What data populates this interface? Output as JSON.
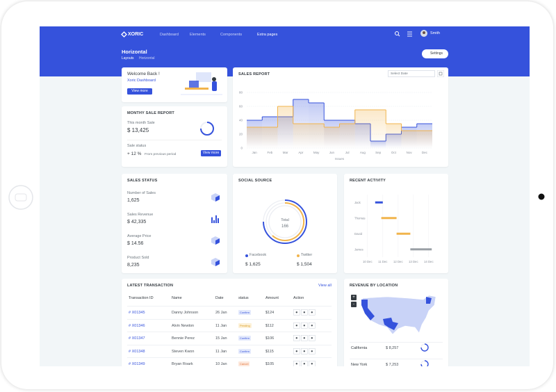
{
  "nav": {
    "brand": "XORIC",
    "links": [
      "Dashboard",
      "Elements",
      "Components",
      "Extra pages"
    ],
    "user": "Smith"
  },
  "page_title": {
    "title": "Horizontal",
    "breadcrumb": [
      "Layouts",
      "Horizontal"
    ],
    "settings": "Settings"
  },
  "welcome": {
    "title": "Welcome Back !",
    "subtitle": "Xoric Dashboard",
    "button": "View more"
  },
  "monthly": {
    "title": "MONTHY SALE REPORT",
    "label": "This month Sale",
    "amount": "$ 13,425",
    "status_label": "Sale status",
    "change": "+ 12 %",
    "change_note": "From previous period",
    "button": "View more"
  },
  "sales_report": {
    "date_picker": "Select Date"
  },
  "chart_data": [
    {
      "type": "step",
      "title": "SALES REPORT",
      "x_label": "Issues",
      "categories": [
        "Jan",
        "Feb",
        "Mar",
        "Apr",
        "May",
        "Jun",
        "Jul",
        "Aug",
        "Sep",
        "Oct",
        "Nov",
        "Dec"
      ],
      "series": [
        {
          "color": "#3552dc",
          "values": [
            40,
            45,
            45,
            70,
            65,
            40,
            40,
            35,
            10,
            20,
            30,
            35
          ]
        },
        {
          "color": "#f1b44c",
          "values": [
            30,
            30,
            60,
            35,
            35,
            30,
            35,
            55,
            55,
            35,
            25,
            25
          ]
        }
      ],
      "ylim": [
        0,
        80
      ],
      "yticks": [
        0,
        20,
        40,
        60,
        80
      ],
      "grid": true
    },
    {
      "type": "gantt",
      "title": "RECENT ACTIVITY",
      "categories": [
        "Jack",
        "Thomas",
        "David",
        "James"
      ],
      "start": [
        10.5,
        10.9,
        11.9,
        12.8
      ],
      "end": [
        11.0,
        11.9,
        12.8,
        14.2
      ],
      "colors": [
        "#3552dc",
        "#f1b44c",
        "#f1b44c",
        "#9aa0a6"
      ],
      "xlim": [
        9.6,
        14.6
      ],
      "xticks": [
        {
          "value": 10,
          "label": "10 Dec"
        },
        {
          "value": 11,
          "label": "11 Dec"
        },
        {
          "value": 12,
          "label": "12 Dec"
        },
        {
          "value": 13,
          "label": "13 Dec"
        },
        {
          "value": 14,
          "label": "14 Dec"
        }
      ]
    }
  ],
  "sales_status": {
    "title": "SALES STATUS",
    "items": [
      {
        "label": "Number of Sales",
        "value": "1,625"
      },
      {
        "label": "Sales Revenue",
        "value": "$ 42,335"
      },
      {
        "label": "Average Price",
        "value": "$ 14.56"
      },
      {
        "label": "Product Sold",
        "value": "8,235"
      }
    ]
  },
  "social": {
    "title": "SOCIAL SOURCE",
    "center_label": "Total",
    "center_value": "166",
    "sources": [
      {
        "name": "Facebook",
        "amount": "$ 1,625"
      },
      {
        "name": "Twitter",
        "amount": "$ 1,504"
      }
    ]
  },
  "transactions": {
    "title": "LATEST TRANSACTION",
    "link": "View all",
    "columns": [
      "Transaction ID",
      "Name",
      "Date",
      "status",
      "Amount",
      "Action"
    ],
    "rows": [
      [
        "# X01345",
        "Danny Johnson",
        "26 Jan",
        "Confirm",
        "$124"
      ],
      [
        "# X01346",
        "Alvin Newton",
        "11 Jan",
        "Pending",
        "$112"
      ],
      [
        "# X01347",
        "Bennie Perez",
        "15 Jan",
        "Confirm",
        "$106"
      ],
      [
        "# X01348",
        "Steven Kwon",
        "11 Jan",
        "Confirm",
        "$115"
      ],
      [
        "# X01349",
        "Bryan Roark",
        "10 Jan",
        "Cancel",
        "$105"
      ]
    ]
  },
  "revenue": {
    "title": "REVENUE BY LOCATION",
    "zoom": [
      "+",
      "-"
    ],
    "locations": [
      {
        "name": "California",
        "amount": "$ 8,257"
      },
      {
        "name": "New York",
        "amount": "$ 7,253"
      }
    ]
  }
}
